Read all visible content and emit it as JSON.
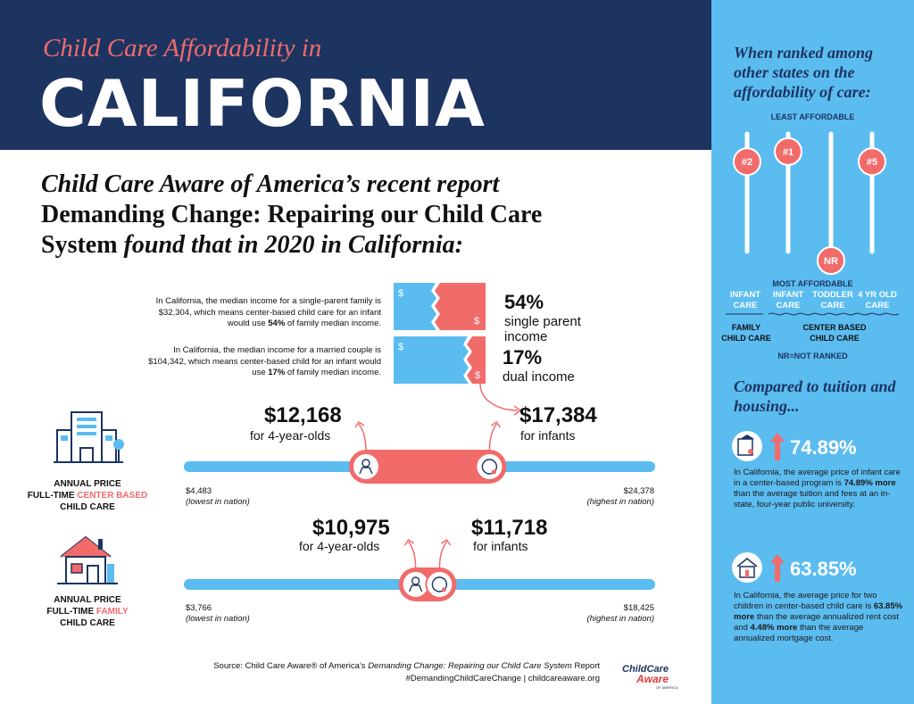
{
  "header": {
    "subtitle": "Child Care Affordability in",
    "title": "CALIFORNIA"
  },
  "intro": {
    "line1": "Child Care Aware of America’s recent report",
    "line2": "Demanding Change: Repairing our Child Care",
    "line3_bold": "System",
    "line3_italic": " found that in 2020 in California:"
  },
  "income": {
    "single": {
      "text_before": "In California, the median income for a single-parent family is $32,304, which means center-based child care for an infant would use ",
      "text_pct": "54%",
      "text_after": " of family median income.",
      "percent": "54%",
      "percent_value": 54,
      "label_line1": "single parent",
      "label_line2": "income"
    },
    "dual": {
      "text_before": "In California, the median income for a married couple is $104,342, which means center-based child for an infant would use ",
      "text_pct": "17%",
      "text_after": " of family median income.",
      "percent": "17%",
      "percent_value": 17,
      "label_line1": "dual income"
    },
    "dollar_sign": "$"
  },
  "center_based": {
    "category_line1": "ANNUAL PRICE",
    "category_line2a": "FULL-TIME ",
    "category_line2b": "CENTER BASED",
    "category_line3": "CHILD CARE",
    "price_4yr": "$12,168",
    "label_4yr": "for 4-year-olds",
    "price_infant": "$17,384",
    "label_infant": "for infants",
    "min": "$4,483",
    "min_note": "(lowest in nation)",
    "max": "$24,378",
    "max_note": "(highest in nation)",
    "values": {
      "min": 4483,
      "max": 24378,
      "four_year": 12168,
      "infant": 17384
    }
  },
  "family": {
    "category_line1": "ANNUAL PRICE",
    "category_line2a": "FULL-TIME ",
    "category_line2b": "FAMILY",
    "category_line3": "CHILD CARE",
    "price_4yr": "$10,975",
    "label_4yr": "for 4-year-olds",
    "price_infant": "$11,718",
    "label_infant": "for infants",
    "min": "$3,766",
    "min_note": "(lowest in nation)",
    "max": "$18,425",
    "max_note": "(highest in nation)",
    "values": {
      "min": 3766,
      "max": 18425,
      "four_year": 10975,
      "infant": 11718
    }
  },
  "source": {
    "line1_a": "Source: Child Care Aware® of America’s ",
    "line1_b": "Demanding Change: Repairing our Child Care System",
    "line1_c": " Report",
    "line2": "#DemandingChildCareChange | childcareaware.org"
  },
  "logo": {
    "line1": "ChildCare",
    "line2": "Aware",
    "line3": "OF AMERICA"
  },
  "panel": {
    "title": "When ranked among other states on the affordability of care:",
    "least": "LEAST AFFORDABLE",
    "most": "MOST AFFORDABLE",
    "ranks": [
      {
        "rank": "#2",
        "level": 0.78
      },
      {
        "rank": "#1",
        "level": 0.86
      },
      {
        "rank": "NR",
        "level": 0.0
      },
      {
        "rank": "#5",
        "level": 0.78
      }
    ],
    "columns": [
      {
        "line1": "INFANT",
        "line2": "CARE"
      },
      {
        "line1": "INFANT",
        "line2": "CARE"
      },
      {
        "line1": "TODDLER",
        "line2": "CARE"
      },
      {
        "line1": "4 YR OLD",
        "line2": "CARE"
      }
    ],
    "group_family_line1": "FAMILY",
    "group_family_line2": "CHILD CARE",
    "group_center_line1": "CENTER BASED",
    "group_center_line2": "CHILD CARE",
    "nr_note": "NR=NOT RANKED",
    "title2": "Compared to tuition and housing...",
    "tuition": {
      "percent": "74.89%",
      "text_a": "In California, the average price of infant care in a center-based program is ",
      "text_b": "74.89% more",
      "text_c": " than the average tuition and fees at an in-state, four-year public university."
    },
    "housing": {
      "percent": "63.85%",
      "text_a": "In California, the average price for two children in center-based child care is ",
      "text_b": "63.85% more",
      "text_c": " than the average annualized rent cost and ",
      "text_d": "4.48% more",
      "text_e": " than the average annualized mortgage cost."
    }
  },
  "colors": {
    "navy": "#1d3461",
    "coral": "#f26b6b",
    "sky": "#5bbcf0",
    "panel": "#5bbcf0"
  }
}
